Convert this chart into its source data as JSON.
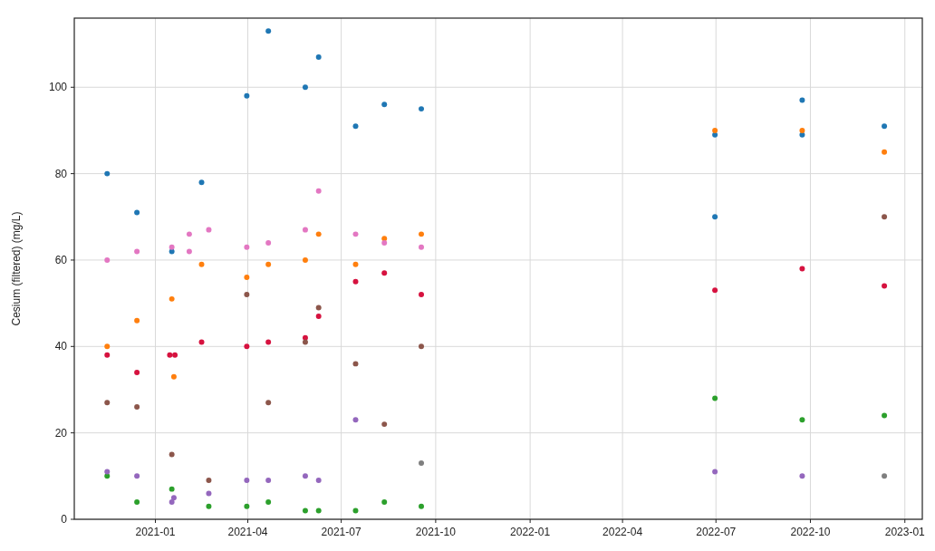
{
  "chart_data": {
    "type": "scatter",
    "ylabel": "Cesium (filtered) (mg/L)",
    "xlim": [
      "2020-10-14",
      "2023-01-18"
    ],
    "xticks": [
      "2021-01",
      "2021-04",
      "2021-07",
      "2021-10",
      "2022-01",
      "2022-04",
      "2022-07",
      "2022-10",
      "2023-01"
    ],
    "ylim": [
      0,
      116
    ],
    "yticks": [
      0,
      20,
      40,
      60,
      80,
      100
    ],
    "grid": true,
    "marker": "circle",
    "series": [
      {
        "color": "#1f77b4",
        "x": [
          "2020-11-15",
          "2020-12-14",
          "2021-01-17",
          "2021-02-15",
          "2021-03-31",
          "2021-04-21",
          "2021-05-27",
          "2021-06-09",
          "2021-07-15",
          "2021-08-12",
          "2021-09-17",
          "2022-06-30",
          "2022-06-30",
          "2022-09-23",
          "2022-09-23",
          "2022-12-12"
        ],
        "values": [
          80,
          71,
          62,
          78,
          98,
          113,
          100,
          107,
          91,
          96,
          95,
          89,
          70,
          97,
          89,
          91
        ]
      },
      {
        "color": "#ff7f0e",
        "x": [
          "2020-11-15",
          "2020-12-14",
          "2021-01-17",
          "2021-01-19",
          "2021-02-15",
          "2021-03-31",
          "2021-04-21",
          "2021-05-27",
          "2021-06-09",
          "2021-07-15",
          "2021-08-12",
          "2021-09-17",
          "2022-06-30",
          "2022-09-23",
          "2022-12-12"
        ],
        "values": [
          40,
          46,
          51,
          33,
          59,
          56,
          59,
          60,
          66,
          59,
          65,
          66,
          90,
          90,
          85
        ]
      },
      {
        "color": "#d6123f",
        "x": [
          "2020-11-15",
          "2020-12-14",
          "2021-01-15",
          "2021-01-20",
          "2021-02-15",
          "2021-03-31",
          "2021-04-21",
          "2021-05-27",
          "2021-06-09",
          "2021-07-15",
          "2021-08-12",
          "2021-09-17",
          "2022-06-30",
          "2022-09-23",
          "2022-12-12"
        ],
        "values": [
          38,
          34,
          38,
          38,
          41,
          40,
          41,
          42,
          47,
          55,
          57,
          52,
          53,
          58,
          54
        ]
      },
      {
        "color": "#8c564b",
        "x": [
          "2020-11-15",
          "2020-12-14",
          "2021-01-17",
          "2021-02-22",
          "2021-03-31",
          "2021-04-21",
          "2021-05-27",
          "2021-06-09",
          "2021-07-15",
          "2021-08-12",
          "2021-09-17",
          "2022-12-12"
        ],
        "values": [
          27,
          26,
          15,
          9,
          52,
          27,
          41,
          49,
          36,
          22,
          40,
          70
        ]
      },
      {
        "color": "#e377c2",
        "x": [
          "2020-11-15",
          "2020-12-14",
          "2021-01-17",
          "2021-02-03",
          "2021-02-03",
          "2021-02-22",
          "2021-03-31",
          "2021-04-21",
          "2021-05-27",
          "2021-06-09",
          "2021-07-15",
          "2021-08-12",
          "2021-09-17"
        ],
        "values": [
          60,
          62,
          63,
          66,
          62,
          67,
          63,
          64,
          67,
          76,
          66,
          64,
          63
        ]
      },
      {
        "color": "#2ca02c",
        "x": [
          "2020-11-15",
          "2020-12-14",
          "2021-01-17",
          "2021-02-22",
          "2021-03-31",
          "2021-04-21",
          "2021-05-27",
          "2021-06-09",
          "2021-07-15",
          "2021-08-12",
          "2021-09-17",
          "2022-06-30",
          "2022-09-23",
          "2022-12-12"
        ],
        "values": [
          10,
          4,
          7,
          3,
          3,
          4,
          2,
          2,
          2,
          4,
          3,
          28,
          23,
          24
        ]
      },
      {
        "color": "#9467bd",
        "x": [
          "2020-11-15",
          "2020-12-14",
          "2021-01-17",
          "2021-01-19",
          "2021-02-22",
          "2021-03-31",
          "2021-04-21",
          "2021-05-27",
          "2021-06-09",
          "2021-07-15",
          "2022-06-30",
          "2022-09-23"
        ],
        "values": [
          11,
          10,
          4,
          5,
          6,
          9,
          9,
          10,
          9,
          23,
          11,
          10
        ]
      },
      {
        "color": "#7f7f7f",
        "x": [
          "2021-09-17",
          "2022-12-12"
        ],
        "values": [
          13,
          10
        ]
      }
    ]
  }
}
